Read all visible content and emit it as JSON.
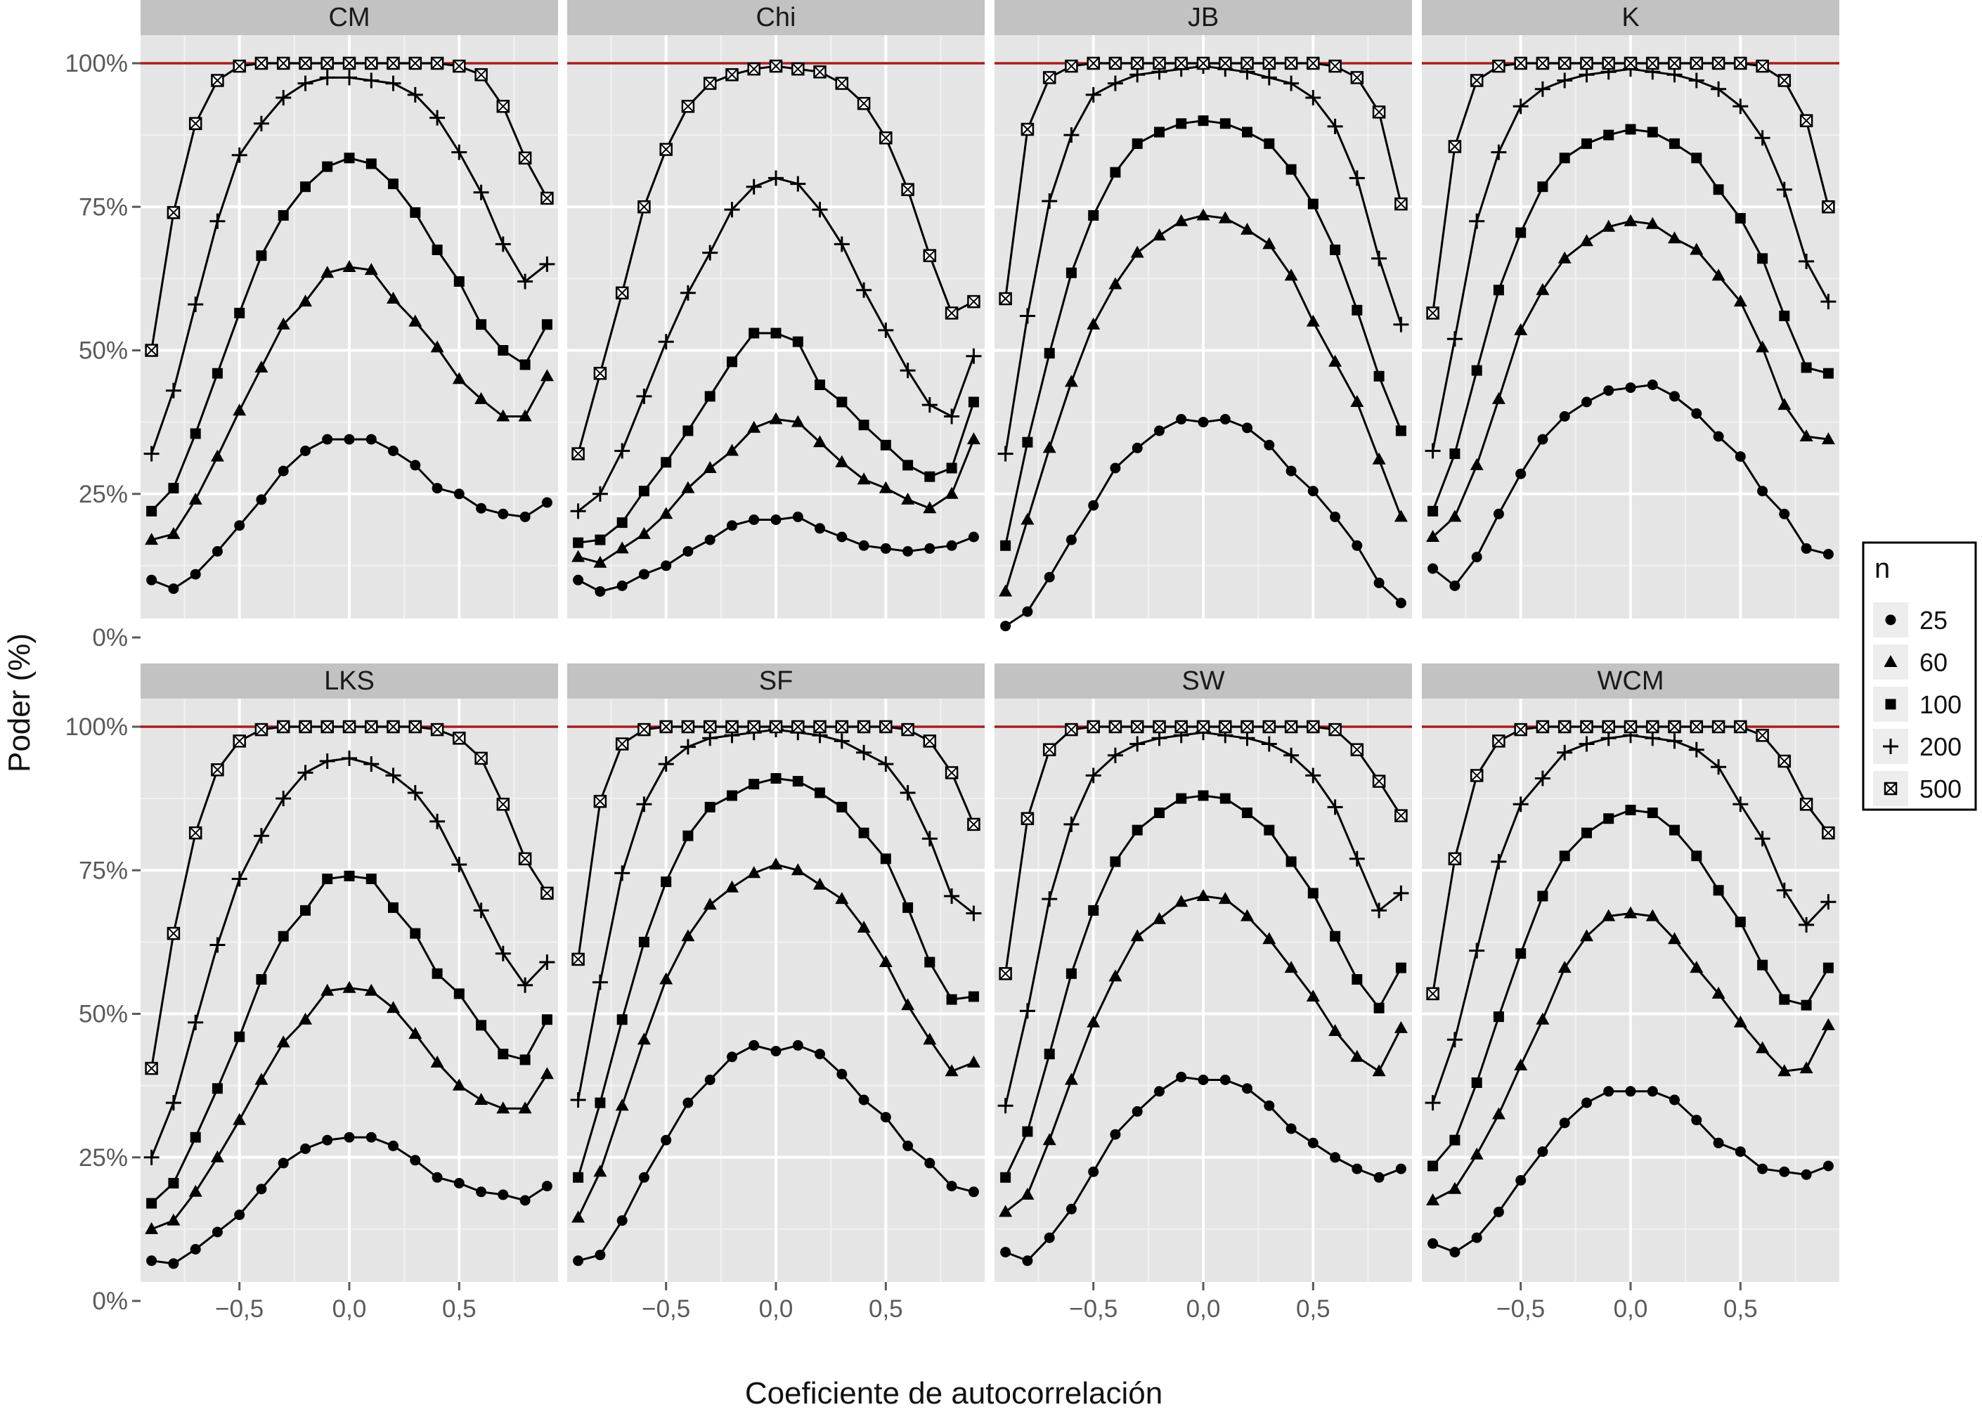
{
  "chart_data": {
    "type": "line",
    "facet_layout": "2 rows x 4 columns",
    "xlabel": "Coeficiente de autocorrelación",
    "ylabel": "Poder (%)",
    "xlim": [
      -0.95,
      0.95
    ],
    "ylim": [
      0,
      100
    ],
    "x_ticks": [
      -0.5,
      0,
      0.5
    ],
    "x_tick_labels": [
      "−0,5",
      "0,0",
      "0,5"
    ],
    "y_ticks": [
      0,
      25,
      50,
      75,
      100
    ],
    "y_tick_labels": [
      "0%",
      "25%",
      "50%",
      "75%",
      "100%"
    ],
    "grid": true,
    "legend_position": "right",
    "reference_line": {
      "y": 100,
      "color": "#a31c1c"
    },
    "legend": {
      "title": "n",
      "items": [
        {
          "label": "25",
          "shape": "circle"
        },
        {
          "label": "60",
          "shape": "triangle"
        },
        {
          "label": "100",
          "shape": "square"
        },
        {
          "label": "200",
          "shape": "plus"
        },
        {
          "label": "500",
          "shape": "boxed-x"
        }
      ]
    },
    "x": [
      -0.9,
      -0.8,
      -0.7,
      -0.6,
      -0.5,
      -0.4,
      -0.3,
      -0.2,
      -0.1,
      0.0,
      0.1,
      0.2,
      0.3,
      0.4,
      0.5,
      0.6,
      0.7,
      0.8,
      0.9
    ],
    "panels": [
      {
        "title": "CM",
        "series": [
          {
            "name": "25",
            "values": [
              10,
              8.5,
              11,
              15,
              19.5,
              24,
              29,
              32.5,
              34.5,
              34.5,
              34.5,
              32.5,
              30,
              26,
              25,
              22.5,
              21.5,
              21,
              23.5
            ]
          },
          {
            "name": "60",
            "values": [
              17,
              18,
              24,
              31.5,
              39.5,
              47,
              54.5,
              58.5,
              63.5,
              64.5,
              64,
              59,
              55,
              50.5,
              45,
              41.5,
              38.5,
              38.5,
              45.5
            ]
          },
          {
            "name": "100",
            "values": [
              22,
              26,
              35.5,
              46,
              56.5,
              66.5,
              73.5,
              78.5,
              82,
              83.5,
              82.5,
              79,
              74,
              67.5,
              62,
              54.5,
              50,
              47.5,
              54.5
            ]
          },
          {
            "name": "200",
            "values": [
              32,
              43,
              58,
              72.5,
              84,
              89.5,
              94,
              96.5,
              97.5,
              97.5,
              97,
              96.5,
              94.5,
              90.5,
              84.5,
              77.5,
              68.5,
              62,
              65
            ]
          },
          {
            "name": "500",
            "values": [
              50,
              74,
              89.5,
              97,
              99.5,
              100,
              100,
              100,
              100,
              100,
              100,
              100,
              100,
              100,
              99.5,
              98,
              92.5,
              83.5,
              76.5
            ]
          }
        ]
      },
      {
        "title": "Chi",
        "series": [
          {
            "name": "25",
            "values": [
              10,
              8,
              9,
              11,
              12.5,
              15,
              17,
              19.5,
              20.5,
              20.5,
              21,
              19,
              17.5,
              16,
              15.5,
              15,
              15.5,
              16,
              17.5
            ]
          },
          {
            "name": "60",
            "values": [
              14,
              13,
              15.5,
              18,
              21.5,
              26,
              29.5,
              32.5,
              36.5,
              38,
              37.5,
              34,
              30.5,
              27.5,
              26,
              24,
              22.5,
              25,
              34.5
            ]
          },
          {
            "name": "100",
            "values": [
              16.5,
              17,
              20,
              25.5,
              30.5,
              36,
              42,
              48,
              53,
              53,
              51.5,
              44,
              41,
              37,
              33.5,
              30,
              28,
              29.5,
              41
            ]
          },
          {
            "name": "200",
            "values": [
              22,
              25,
              32.5,
              42,
              51.5,
              60,
              67,
              74.5,
              78.5,
              80,
              79,
              74.5,
              68.5,
              60.5,
              53.5,
              46.5,
              40.5,
              38.5,
              49
            ]
          },
          {
            "name": "500",
            "values": [
              32,
              46,
              60,
              75,
              85,
              92.5,
              96.5,
              98,
              99,
              99.5,
              99,
              98.5,
              96.5,
              93,
              87,
              78,
              66.5,
              56.5,
              58.5
            ]
          }
        ]
      },
      {
        "title": "JB",
        "series": [
          {
            "name": "25",
            "values": [
              2,
              4.5,
              10.5,
              17,
              23,
              29.5,
              33,
              36,
              38,
              37.5,
              38,
              36.5,
              33.5,
              29,
              25.5,
              21,
              16,
              9.5,
              6
            ]
          },
          {
            "name": "60",
            "values": [
              8,
              20.5,
              33,
              44.5,
              54.5,
              61.5,
              67,
              70,
              72.5,
              73.5,
              73,
              71,
              68.5,
              63,
              55,
              48,
              41,
              31,
              21
            ]
          },
          {
            "name": "100",
            "values": [
              16,
              34,
              49.5,
              63.5,
              73.5,
              81,
              86,
              88,
              89.5,
              90,
              89.5,
              88,
              86,
              81.5,
              75.5,
              67.5,
              57,
              45.5,
              36
            ]
          },
          {
            "name": "200",
            "values": [
              32,
              56,
              76,
              87.5,
              94.5,
              96.5,
              98,
              98.5,
              99,
              99.5,
              99,
              98.5,
              97.5,
              96.5,
              94,
              89,
              80,
              66,
              54.5
            ]
          },
          {
            "name": "500",
            "values": [
              59,
              88.5,
              97.5,
              99.5,
              100,
              100,
              100,
              100,
              100,
              100,
              100,
              100,
              100,
              100,
              100,
              99.5,
              97.5,
              91.5,
              75.5
            ]
          }
        ]
      },
      {
        "title": "K",
        "series": [
          {
            "name": "25",
            "values": [
              12,
              9,
              14,
              21.5,
              28.5,
              34.5,
              38.5,
              41,
              43,
              43.5,
              44,
              42,
              39,
              35,
              31.5,
              25.5,
              21.5,
              15.5,
              14.5
            ]
          },
          {
            "name": "60",
            "values": [
              17.5,
              21,
              30,
              41.5,
              53.5,
              60.5,
              66,
              69,
              71.5,
              72.5,
              72,
              69.5,
              67.5,
              63,
              58.5,
              50.5,
              40.5,
              35,
              34.5
            ]
          },
          {
            "name": "100",
            "values": [
              22,
              32,
              46.5,
              60.5,
              70.5,
              78.5,
              83.5,
              86,
              87.5,
              88.5,
              88,
              86,
              83.5,
              78,
              73,
              66,
              56,
              47,
              46
            ]
          },
          {
            "name": "200",
            "values": [
              32.5,
              52,
              72.5,
              84.5,
              92.5,
              95.5,
              97,
              98,
              98.5,
              99,
              98.5,
              98,
              97,
              95.5,
              92.5,
              87,
              78,
              65.5,
              58.5
            ]
          },
          {
            "name": "500",
            "values": [
              56.5,
              85.5,
              97,
              99.5,
              100,
              100,
              100,
              100,
              100,
              100,
              100,
              100,
              100,
              100,
              100,
              99.5,
              97,
              90,
              75
            ]
          }
        ]
      },
      {
        "title": "LKS",
        "series": [
          {
            "name": "25",
            "values": [
              7,
              6.5,
              9,
              12,
              15,
              19.5,
              24,
              26.5,
              28,
              28.5,
              28.5,
              27,
              24.5,
              21.5,
              20.5,
              19,
              18.5,
              17.5,
              20
            ]
          },
          {
            "name": "60",
            "values": [
              12.5,
              14,
              19,
              25,
              31.5,
              38.5,
              45,
              49,
              54,
              54.5,
              54,
              51,
              46.5,
              41.5,
              37.5,
              35,
              33.5,
              33.5,
              39.5
            ]
          },
          {
            "name": "100",
            "values": [
              17,
              20.5,
              28.5,
              37,
              46,
              56,
              63.5,
              68,
              73.5,
              74,
              73.5,
              68.5,
              64,
              57,
              53.5,
              48,
              43,
              42,
              49
            ]
          },
          {
            "name": "200",
            "values": [
              25,
              34.5,
              48.5,
              62,
              73.5,
              81,
              87.5,
              92,
              94,
              94.5,
              93.5,
              91.5,
              88.5,
              83.5,
              76,
              68,
              60.5,
              55,
              59
            ]
          },
          {
            "name": "500",
            "values": [
              40.5,
              64,
              81.5,
              92.5,
              97.5,
              99.5,
              100,
              100,
              100,
              100,
              100,
              100,
              100,
              99.5,
              98,
              94.5,
              86.5,
              77,
              71
            ]
          }
        ]
      },
      {
        "title": "SF",
        "series": [
          {
            "name": "25",
            "values": [
              7,
              8,
              14,
              21.5,
              28,
              34.5,
              38.5,
              42.5,
              44.5,
              43.5,
              44.5,
              43,
              39.5,
              35,
              32,
              27,
              24,
              20,
              19
            ]
          },
          {
            "name": "60",
            "values": [
              14.5,
              22.5,
              34,
              45.5,
              56,
              63.5,
              69,
              72,
              74.5,
              76,
              75,
              72.5,
              70,
              65,
              59,
              51.5,
              45.5,
              40,
              41.5
            ]
          },
          {
            "name": "100",
            "values": [
              21.5,
              34.5,
              49,
              62.5,
              73,
              81,
              86,
              88,
              90,
              91,
              90.5,
              88.5,
              86,
              81.5,
              77,
              68.5,
              59,
              52.5,
              53
            ]
          },
          {
            "name": "200",
            "values": [
              35,
              55.5,
              74.5,
              86.5,
              93.5,
              96.5,
              98,
              98.5,
              99,
              99.5,
              99,
              98.5,
              97.5,
              95.5,
              93.5,
              88.5,
              80.5,
              70.5,
              67.5
            ]
          },
          {
            "name": "500",
            "values": [
              59.5,
              87,
              97,
              99.5,
              100,
              100,
              100,
              100,
              100,
              100,
              100,
              100,
              100,
              100,
              100,
              99.5,
              97.5,
              92,
              83
            ]
          }
        ]
      },
      {
        "title": "SW",
        "series": [
          {
            "name": "25",
            "values": [
              8.5,
              7,
              11,
              16,
              22.5,
              29,
              33,
              36.5,
              39,
              38.5,
              38.5,
              37,
              34,
              30,
              27.5,
              25,
              23,
              21.5,
              23
            ]
          },
          {
            "name": "60",
            "values": [
              15.5,
              18.5,
              28,
              38.5,
              48.5,
              56.5,
              63.5,
              66.5,
              69.5,
              70.5,
              70,
              67,
              63,
              58,
              53,
              47,
              42.5,
              40,
              47.5
            ]
          },
          {
            "name": "100",
            "values": [
              21.5,
              29.5,
              43,
              57,
              68,
              76.5,
              82,
              85,
              87.5,
              88,
              87.5,
              85,
              82,
              76.5,
              71,
              63.5,
              56,
              51,
              58
            ]
          },
          {
            "name": "200",
            "values": [
              34,
              50.5,
              70,
              83,
              91.5,
              95,
              97,
              98,
              98.5,
              99,
              98.5,
              98,
              97,
              95,
              91.5,
              86,
              77,
              68,
              71
            ]
          },
          {
            "name": "500",
            "values": [
              57,
              84,
              96,
              99.5,
              100,
              100,
              100,
              100,
              100,
              100,
              100,
              100,
              100,
              100,
              100,
              99.5,
              96,
              90.5,
              84.5
            ]
          }
        ]
      },
      {
        "title": "WCM",
        "series": [
          {
            "name": "25",
            "values": [
              10,
              8.5,
              11,
              15.5,
              21,
              26,
              31,
              34.5,
              36.5,
              36.5,
              36.5,
              35,
              31.5,
              27.5,
              26,
              23,
              22.5,
              22,
              23.5
            ]
          },
          {
            "name": "60",
            "values": [
              17.5,
              19.5,
              25.5,
              32.5,
              41,
              49,
              58,
              63.5,
              67,
              67.5,
              67,
              63,
              58,
              53.5,
              48.5,
              44,
              40,
              40.5,
              48
            ]
          },
          {
            "name": "100",
            "values": [
              23.5,
              28,
              38,
              49.5,
              60.5,
              70.5,
              77.5,
              81.5,
              84,
              85.5,
              85,
              82,
              77.5,
              71.5,
              66,
              58.5,
              52.5,
              51.5,
              58
            ]
          },
          {
            "name": "200",
            "values": [
              34.5,
              45.5,
              61,
              76.5,
              86.5,
              91,
              95.5,
              97,
              98,
              98.5,
              98,
              97.5,
              96,
              93,
              86.5,
              80.5,
              71.5,
              65.5,
              69.5
            ]
          },
          {
            "name": "500",
            "values": [
              53.5,
              77,
              91.5,
              97.5,
              99.5,
              100,
              100,
              100,
              100,
              100,
              100,
              100,
              100,
              100,
              100,
              98.5,
              94,
              86.5,
              81.5
            ]
          }
        ]
      }
    ]
  }
}
